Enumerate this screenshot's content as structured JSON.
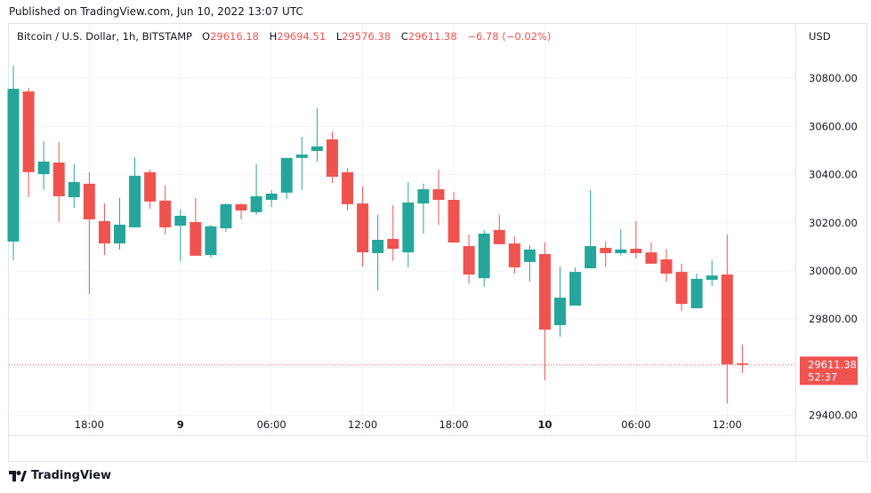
{
  "published": "Published on TradingView.com, Jun 10, 2022 13:07 UTC",
  "legend": {
    "symbol": "Bitcoin / U.S. Dollar, 1h, BITSTAMP",
    "o_label": "O",
    "o": "29616.18",
    "h_label": "H",
    "h": "29694.51",
    "l_label": "L",
    "l": "29576.38",
    "c_label": "C",
    "c": "29611.38",
    "change": "−6.78 (−0.02%)"
  },
  "footer": {
    "brand": "TradingView"
  },
  "colors": {
    "up": "#26a69a",
    "down": "#ef5350",
    "grid": "#f0f3fa",
    "text": "#131722"
  },
  "chart_data": {
    "type": "candlestick",
    "title": "",
    "currency_label": "USD",
    "ylim": [
      29330,
      30950
    ],
    "grid": true,
    "y_gridlines": [
      29400,
      29600,
      29800,
      30000,
      30200,
      30400,
      30600,
      30800
    ],
    "y_tick_labels": [
      "30800.00",
      "30600.00",
      "30400.00",
      "30200.00",
      "30000.00",
      "29800.00",
      "29400.00"
    ],
    "x_tick_labels": [
      {
        "index": 5,
        "label": "18:00",
        "bold": false
      },
      {
        "index": 11,
        "label": "9",
        "bold": true
      },
      {
        "index": 17,
        "label": "06:00",
        "bold": false
      },
      {
        "index": 23,
        "label": "12:00",
        "bold": false
      },
      {
        "index": 29,
        "label": "18:00",
        "bold": false
      },
      {
        "index": 35,
        "label": "10",
        "bold": true
      },
      {
        "index": 41,
        "label": "06:00",
        "bold": false
      },
      {
        "index": 47,
        "label": "12:00",
        "bold": false
      }
    ],
    "current_price": {
      "value": 29611.38,
      "label": "29611.38",
      "countdown": "52:37"
    },
    "ohlc": [
      [
        30122,
        30852,
        30044,
        30756
      ],
      [
        30745,
        30760,
        30306,
        30410
      ],
      [
        30402,
        30539,
        30336,
        30454
      ],
      [
        30450,
        30535,
        30203,
        30310
      ],
      [
        30306,
        30443,
        30262,
        30369
      ],
      [
        30362,
        30410,
        29904,
        30214
      ],
      [
        30207,
        30280,
        30066,
        30114
      ],
      [
        30114,
        30303,
        30089,
        30192
      ],
      [
        30181,
        30472,
        30181,
        30395
      ],
      [
        30410,
        30421,
        30258,
        30288
      ],
      [
        30292,
        30354,
        30151,
        30181
      ],
      [
        30188,
        30255,
        30041,
        30229
      ],
      [
        30203,
        30303,
        30063,
        30063
      ],
      [
        30066,
        30192,
        30055,
        30185
      ],
      [
        30177,
        30280,
        30162,
        30277
      ],
      [
        30277,
        30280,
        30214,
        30251
      ],
      [
        30244,
        30443,
        30233,
        30310
      ],
      [
        30295,
        30336,
        30266,
        30321
      ],
      [
        30325,
        30469,
        30299,
        30469
      ],
      [
        30469,
        30557,
        30336,
        30483
      ],
      [
        30498,
        30675,
        30454,
        30517
      ],
      [
        30546,
        30579,
        30365,
        30391
      ],
      [
        30410,
        30428,
        30251,
        30277
      ],
      [
        30280,
        30351,
        30018,
        30077
      ],
      [
        30074,
        30233,
        29919,
        30129
      ],
      [
        30133,
        30273,
        30041,
        30092
      ],
      [
        30077,
        30369,
        30015,
        30284
      ],
      [
        30280,
        30362,
        30155,
        30339
      ],
      [
        30339,
        30421,
        30192,
        30295
      ],
      [
        30295,
        30328,
        30118,
        30118
      ],
      [
        30103,
        30151,
        29948,
        29985
      ],
      [
        29970,
        30170,
        29934,
        30155
      ],
      [
        30170,
        30233,
        30111,
        30111
      ],
      [
        30114,
        30144,
        29989,
        30015
      ],
      [
        30037,
        30107,
        29956,
        30089
      ],
      [
        30070,
        30118,
        29546,
        29756
      ],
      [
        29775,
        30018,
        29727,
        29889
      ],
      [
        29856,
        30015,
        29856,
        29996
      ],
      [
        30011,
        30336,
        30011,
        30103
      ],
      [
        30096,
        30122,
        30018,
        30074
      ],
      [
        30074,
        30173,
        30063,
        30089
      ],
      [
        30092,
        30207,
        30052,
        30074
      ],
      [
        30077,
        30118,
        30030,
        30030
      ],
      [
        30048,
        30092,
        29956,
        29989
      ],
      [
        29996,
        30030,
        29834,
        29863
      ],
      [
        29845,
        29989,
        29845,
        29967
      ],
      [
        29963,
        30044,
        29937,
        29981
      ],
      [
        29985,
        30151,
        29450,
        29612
      ],
      [
        29616.18,
        29694.51,
        29576.38,
        29611.38
      ]
    ]
  }
}
